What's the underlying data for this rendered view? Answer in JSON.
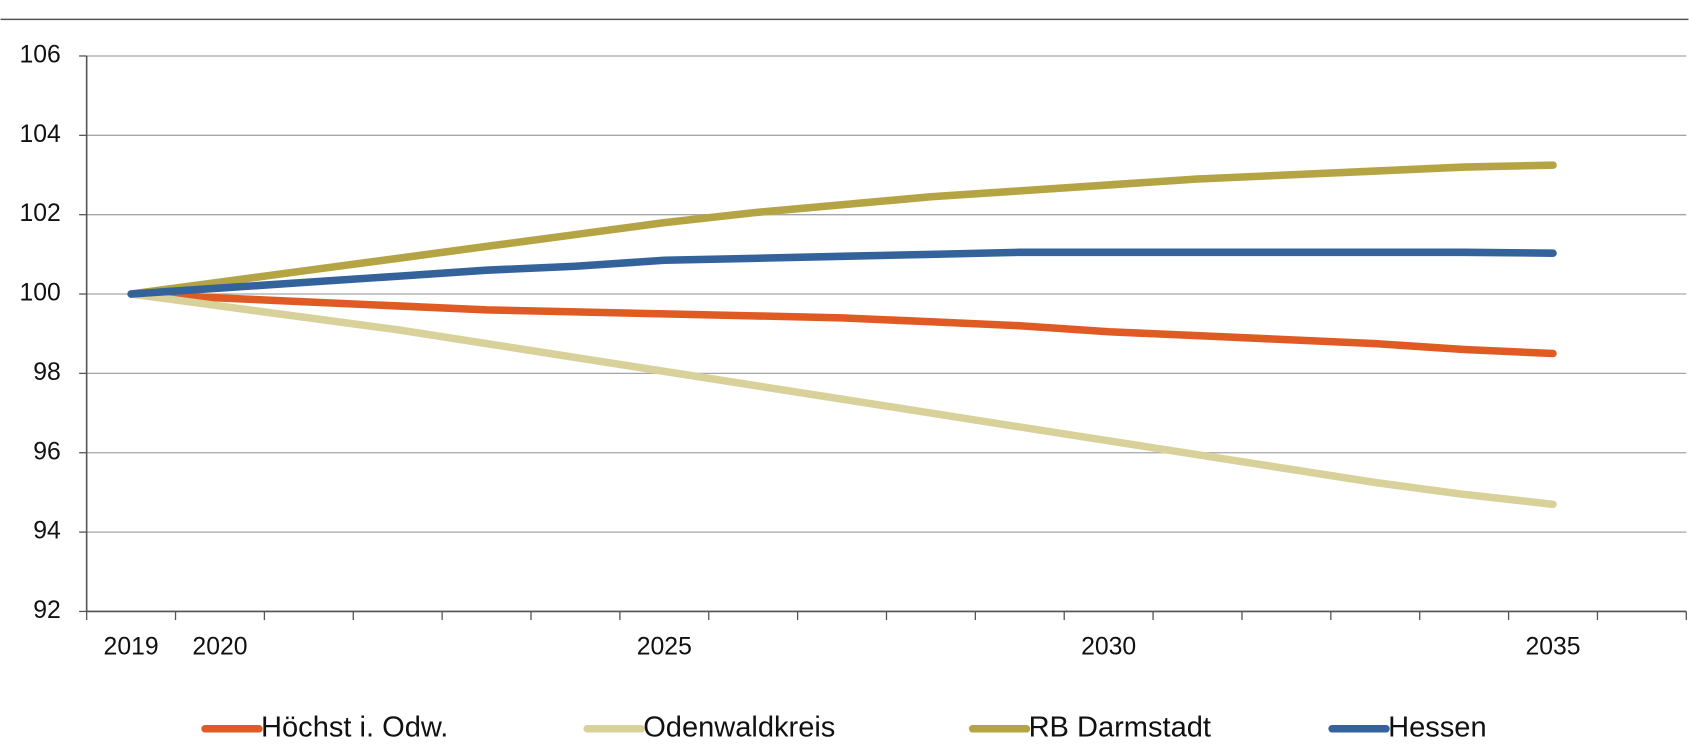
{
  "chart_data": {
    "type": "line",
    "categories": [
      "2019",
      "2020",
      null,
      null,
      null,
      null,
      "2025",
      null,
      null,
      null,
      null,
      "2030",
      null,
      null,
      null,
      null,
      "2035",
      null
    ],
    "series": [
      {
        "name": "Höchst i. Odw.",
        "color": "#e05a24",
        "values": [
          100,
          99.9,
          99.8,
          99.7,
          99.6,
          99.55,
          99.5,
          99.45,
          99.4,
          99.3,
          99.2,
          99.05,
          98.95,
          98.85,
          98.75,
          98.6,
          98.5,
          null
        ]
      },
      {
        "name": "Odenwaldkreis",
        "color": "#d9d19a",
        "values": [
          100,
          99.7,
          99.4,
          99.1,
          98.75,
          98.4,
          98.05,
          97.7,
          97.35,
          97.0,
          96.65,
          96.3,
          95.95,
          95.6,
          95.25,
          94.95,
          94.7,
          null
        ]
      },
      {
        "name": "RB Darmstadt",
        "color": "#b4a444",
        "values": [
          100,
          100.3,
          100.6,
          100.9,
          101.2,
          101.5,
          101.8,
          102.05,
          102.25,
          102.45,
          102.6,
          102.75,
          102.9,
          103.0,
          103.1,
          103.2,
          103.25,
          null
        ]
      },
      {
        "name": "Hessen",
        "color": "#33639a",
        "values": [
          100,
          100.15,
          100.3,
          100.45,
          100.6,
          100.7,
          100.85,
          100.9,
          100.95,
          101.0,
          101.05,
          101.05,
          101.05,
          101.05,
          101.05,
          101.05,
          101.03,
          null
        ]
      }
    ],
    "ylim": [
      92,
      106
    ],
    "yticks": [
      92,
      94,
      96,
      98,
      100,
      102,
      104,
      106
    ],
    "grid": true,
    "legend": "bottom"
  }
}
